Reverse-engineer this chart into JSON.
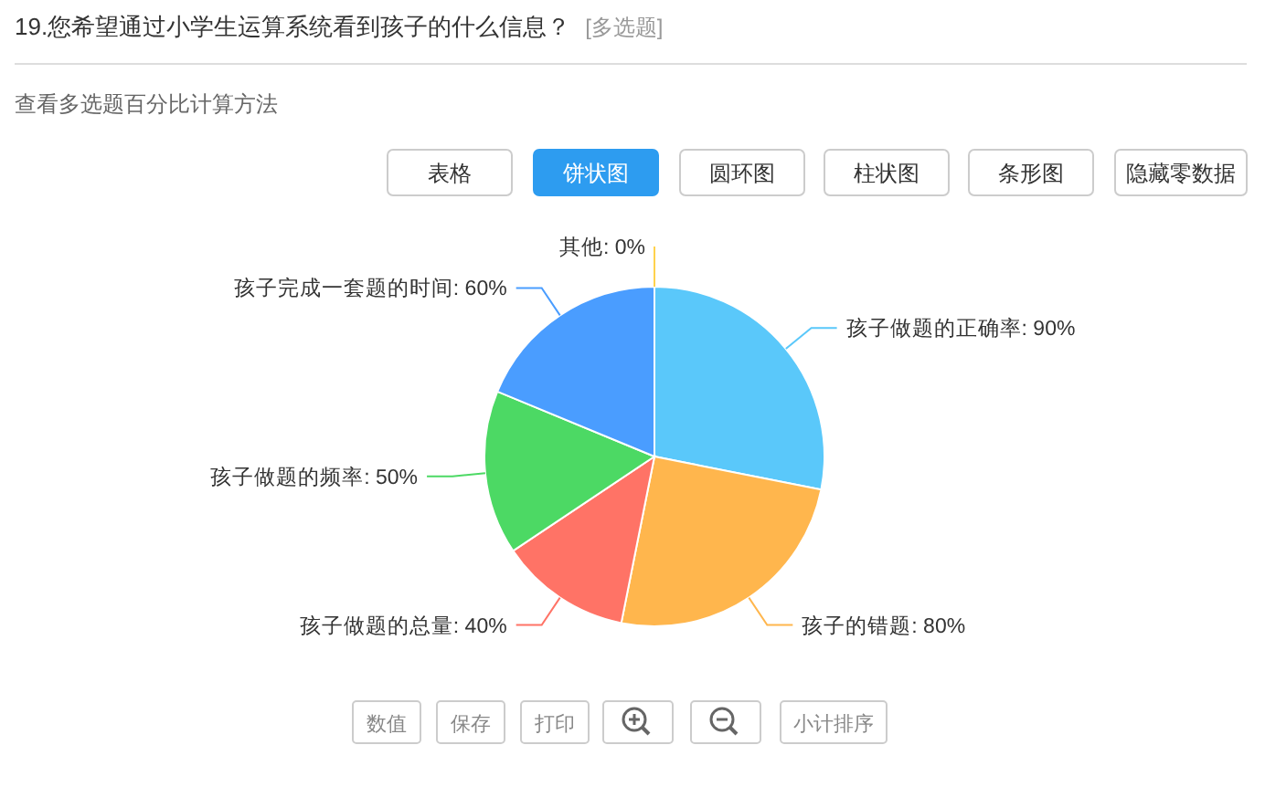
{
  "chart_data": {
    "type": "pie",
    "title": "19.您希望通过小学生运算系统看到孩子的什么信息？",
    "subtitle": "[多选题]",
    "annotations": [
      "查看多选题百分比计算方法",
      "表格",
      "饼状图",
      "圆环图",
      "柱状图",
      "条形图",
      "隐藏零数据",
      "数值",
      "保存",
      "打印",
      "小计排序"
    ],
    "categories": [
      "孩子做题的正确率",
      "孩子的错题",
      "孩子做题的总量",
      "孩子做题的频率",
      "孩子完成一套题的时间",
      "其他"
    ],
    "values": [
      90,
      80,
      40,
      50,
      60,
      0
    ],
    "value_labels": [
      ": 90%",
      ": 80%",
      ": 40%",
      ": 50%",
      ": 60%",
      ": 0%"
    ],
    "colors": [
      "#5ac8fa",
      "#ffb64d",
      "#ff7366",
      "#4cd964",
      "#4a9dff",
      "#ffd24d"
    ]
  }
}
